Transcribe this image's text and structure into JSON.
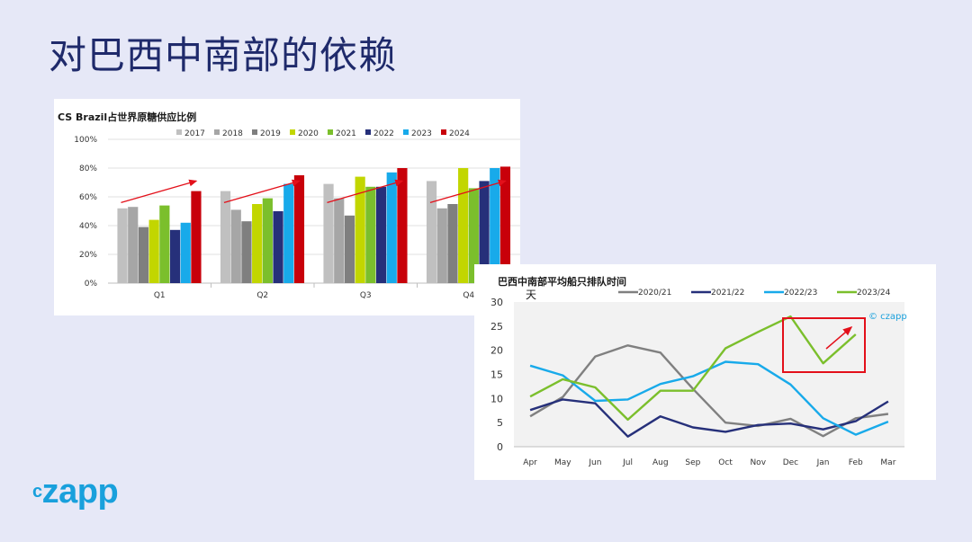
{
  "slide": {
    "title": "对巴西中南部的依赖"
  },
  "logo": {
    "prefix": "c",
    "rest": "zapp"
  },
  "chart_data": [
    {
      "type": "bar",
      "title": "CS Brazil占世界原糖供应比例",
      "categories": [
        "Q1",
        "Q2",
        "Q3",
        "Q4"
      ],
      "y_ticks": [
        "0%",
        "20%",
        "40%",
        "60%",
        "80%",
        "100%"
      ],
      "ylim": [
        0,
        100
      ],
      "legend_position": "top",
      "series": [
        {
          "name": "2017",
          "color": "#c0c0c0",
          "values": [
            52,
            64,
            69,
            71
          ]
        },
        {
          "name": "2018",
          "color": "#a6a6a6",
          "values": [
            53,
            51,
            59,
            52
          ]
        },
        {
          "name": "2019",
          "color": "#7f7f7f",
          "values": [
            39,
            43,
            47,
            55
          ]
        },
        {
          "name": "2020",
          "color": "#c2d600",
          "values": [
            44,
            55,
            74,
            80
          ]
        },
        {
          "name": "2021",
          "color": "#7bbf2c",
          "values": [
            54,
            59,
            67,
            66
          ]
        },
        {
          "name": "2022",
          "color": "#26307a",
          "values": [
            37,
            50,
            67,
            71
          ]
        },
        {
          "name": "2023",
          "color": "#18aaea",
          "values": [
            42,
            69,
            77,
            80
          ]
        },
        {
          "name": "2024",
          "color": "#c8000a",
          "values": [
            64,
            75,
            80,
            81
          ]
        }
      ],
      "annotations": "red upward arrows above each quarter group"
    },
    {
      "type": "line",
      "title": "巴西中南部平均船只排队时间",
      "ylabel": "天",
      "categories": [
        "Apr",
        "May",
        "Jun",
        "Jul",
        "Aug",
        "Sep",
        "Oct",
        "Nov",
        "Dec",
        "Jan",
        "Feb",
        "Mar"
      ],
      "y_ticks": [
        "0",
        "5",
        "10",
        "15",
        "20",
        "25",
        "30"
      ],
      "ylim": [
        0,
        30
      ],
      "legend_position": "top",
      "watermark": "© czapp",
      "series": [
        {
          "name": "2020/21",
          "color": "#808080",
          "values": [
            6.3,
            10.3,
            18.7,
            21.0,
            19.5,
            12.0,
            5.0,
            4.3,
            5.8,
            2.2,
            5.9,
            6.8
          ]
        },
        {
          "name": "2021/22",
          "color": "#26307a",
          "values": [
            7.6,
            9.8,
            9.0,
            2.1,
            6.3,
            4.0,
            3.1,
            4.5,
            4.8,
            3.6,
            5.3,
            9.4
          ]
        },
        {
          "name": "2022/23",
          "color": "#18aaea",
          "values": [
            16.8,
            14.8,
            9.5,
            9.8,
            13.0,
            14.6,
            17.6,
            17.1,
            12.9,
            5.9,
            2.5,
            5.2
          ]
        },
        {
          "name": "2023/24",
          "color": "#7bbf2c",
          "values": [
            10.4,
            14.0,
            12.3,
            5.6,
            11.6,
            11.6,
            20.4,
            23.8,
            27.0,
            17.3,
            23.3,
            null
          ]
        }
      ],
      "annotations": "red box around Dec–Feb with red upward arrow"
    }
  ]
}
